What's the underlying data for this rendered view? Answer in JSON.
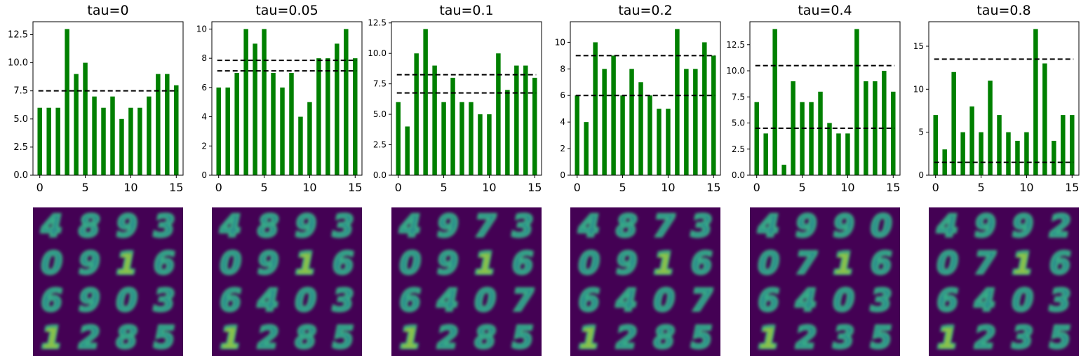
{
  "colors": {
    "bar": "#008000",
    "threshold": "#000000",
    "image_bg": "#440154",
    "digit_fill": "#2a8a8c",
    "digit_edge": "#3bb586",
    "digit_hot": "#cde11d"
  },
  "chart_data": [
    {
      "type": "bar",
      "title": "tau=0",
      "x": [
        0,
        1,
        2,
        3,
        4,
        5,
        6,
        7,
        8,
        9,
        10,
        11,
        12,
        13,
        14,
        15
      ],
      "values": [
        6,
        6,
        6,
        13,
        9,
        10,
        7,
        6,
        7,
        5,
        6,
        6,
        7,
        9,
        9,
        8
      ],
      "thresholds": [
        7.5
      ],
      "ylim": [
        0,
        13.65
      ],
      "yticks": [
        0,
        2.5,
        5,
        7.5,
        10,
        12.5
      ],
      "ytick_labels": [
        "0.0",
        "2.5",
        "5.0",
        "7.5",
        "10.0",
        "12.5"
      ],
      "xticks": [
        0,
        5,
        10,
        15
      ],
      "xtick_labels": [
        "0",
        "5",
        "10",
        "15"
      ],
      "digits": [
        "4",
        "8",
        "9",
        "3",
        "0",
        "9",
        "1",
        "6",
        "6",
        "9",
        "0",
        "3",
        "1",
        "2",
        "8",
        "5"
      ]
    },
    {
      "type": "bar",
      "title": "tau=0.05",
      "x": [
        0,
        1,
        2,
        3,
        4,
        5,
        6,
        7,
        8,
        9,
        10,
        11,
        12,
        13,
        14,
        15
      ],
      "values": [
        6,
        6,
        7,
        10,
        9,
        10,
        7,
        6,
        7,
        4,
        5,
        8,
        8,
        9,
        10,
        8
      ],
      "thresholds": [
        7.86,
        7.14
      ],
      "ylim": [
        0,
        10.5
      ],
      "yticks": [
        0,
        2,
        4,
        6,
        8,
        10
      ],
      "ytick_labels": [
        "0",
        "2",
        "4",
        "6",
        "8",
        "10"
      ],
      "xticks": [
        0,
        5,
        10,
        15
      ],
      "xtick_labels": [
        "0",
        "5",
        "10",
        "15"
      ],
      "digits": [
        "4",
        "8",
        "9",
        "3",
        "0",
        "9",
        "1",
        "6",
        "6",
        "4",
        "0",
        "3",
        "1",
        "2",
        "8",
        "5"
      ]
    },
    {
      "type": "bar",
      "title": "tau=0.1",
      "x": [
        0,
        1,
        2,
        3,
        4,
        5,
        6,
        7,
        8,
        9,
        10,
        11,
        12,
        13,
        14,
        15
      ],
      "values": [
        6,
        4,
        10,
        12,
        9,
        6,
        8,
        6,
        6,
        5,
        5,
        10,
        7,
        9,
        9,
        8
      ],
      "thresholds": [
        8.25,
        6.75
      ],
      "ylim": [
        0,
        12.6
      ],
      "yticks": [
        0,
        2.5,
        5,
        7.5,
        10,
        12.5
      ],
      "ytick_labels": [
        "0.0",
        "2.5",
        "5.0",
        "7.5",
        "10.0",
        "12.5"
      ],
      "xticks": [
        0,
        5,
        10,
        15
      ],
      "xtick_labels": [
        "0",
        "5",
        "10",
        "15"
      ],
      "digits": [
        "4",
        "9",
        "7",
        "3",
        "0",
        "9",
        "1",
        "6",
        "6",
        "4",
        "0",
        "7",
        "1",
        "2",
        "8",
        "5"
      ]
    },
    {
      "type": "bar",
      "title": "tau=0.2",
      "x": [
        0,
        1,
        2,
        3,
        4,
        5,
        6,
        7,
        8,
        9,
        10,
        11,
        12,
        13,
        14,
        15
      ],
      "values": [
        6,
        4,
        10,
        8,
        9,
        6,
        8,
        7,
        6,
        5,
        5,
        11,
        8,
        8,
        10,
        9
      ],
      "thresholds": [
        9.0,
        6.0
      ],
      "ylim": [
        0,
        11.55
      ],
      "yticks": [
        0,
        2,
        4,
        6,
        8,
        10
      ],
      "ytick_labels": [
        "0",
        "2",
        "4",
        "6",
        "8",
        "10"
      ],
      "xticks": [
        0,
        5,
        10,
        15
      ],
      "xtick_labels": [
        "0",
        "5",
        "10",
        "15"
      ],
      "digits": [
        "4",
        "8",
        "7",
        "3",
        "0",
        "9",
        "1",
        "6",
        "6",
        "4",
        "0",
        "7",
        "1",
        "2",
        "8",
        "5"
      ]
    },
    {
      "type": "bar",
      "title": "tau=0.4",
      "x": [
        0,
        1,
        2,
        3,
        4,
        5,
        6,
        7,
        8,
        9,
        10,
        11,
        12,
        13,
        14,
        15
      ],
      "values": [
        7,
        4,
        14,
        1,
        9,
        7,
        7,
        8,
        5,
        4,
        4,
        14,
        9,
        9,
        10,
        8
      ],
      "thresholds": [
        10.5,
        4.5
      ],
      "ylim": [
        0,
        14.7
      ],
      "yticks": [
        0,
        2.5,
        5,
        7.5,
        10,
        12.5
      ],
      "ytick_labels": [
        "0.0",
        "2.5",
        "5.0",
        "7.5",
        "10.0",
        "12.5"
      ],
      "xticks": [
        0,
        5,
        10,
        15
      ],
      "xtick_labels": [
        "0",
        "5",
        "10",
        "15"
      ],
      "digits": [
        "4",
        "9",
        "9",
        "0",
        "0",
        "7",
        "1",
        "6",
        "6",
        "4",
        "0",
        "3",
        "1",
        "2",
        "3",
        "5"
      ]
    },
    {
      "type": "bar",
      "title": "tau=0.8",
      "x": [
        0,
        1,
        2,
        3,
        4,
        5,
        6,
        7,
        8,
        9,
        10,
        11,
        12,
        13,
        14,
        15
      ],
      "values": [
        7,
        3,
        12,
        5,
        8,
        5,
        11,
        7,
        5,
        4,
        5,
        17,
        13,
        4,
        7,
        7
      ],
      "thresholds": [
        13.5,
        1.5
      ],
      "ylim": [
        0,
        17.85
      ],
      "yticks": [
        0,
        5,
        10,
        15
      ],
      "ytick_labels": [
        "0",
        "5",
        "10",
        "15"
      ],
      "xticks": [
        0,
        5,
        10,
        15
      ],
      "xtick_labels": [
        "0",
        "5",
        "10",
        "15"
      ],
      "digits": [
        "4",
        "9",
        "9",
        "2",
        "0",
        "7",
        "1",
        "6",
        "6",
        "4",
        "0",
        "3",
        "1",
        "2",
        "3",
        "5"
      ]
    }
  ]
}
